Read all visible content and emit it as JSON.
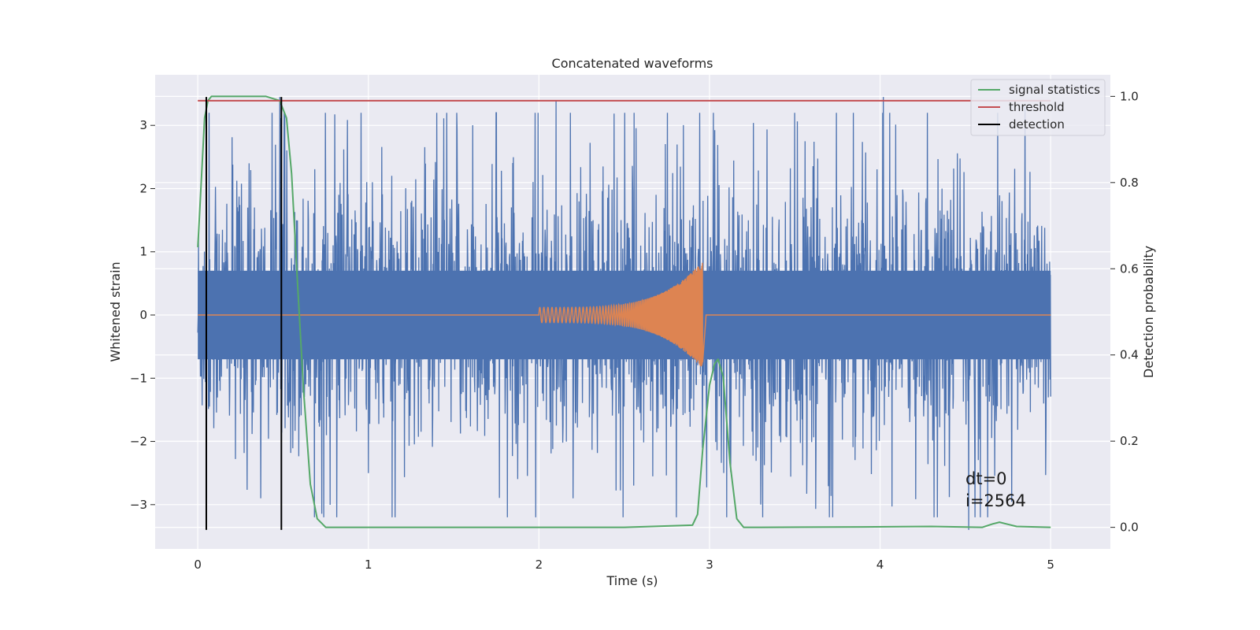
{
  "chart_data": {
    "type": "line",
    "title": "Concatenated waveforms",
    "xlabel": "Time (s)",
    "ylabel_left": "Whitened strain",
    "ylabel_right": "Detection probability",
    "xlim": [
      -0.25,
      5.35
    ],
    "ylim_left": [
      -3.7,
      3.8
    ],
    "ylim_right": [
      -0.05,
      1.05
    ],
    "xticks": [
      0,
      1,
      2,
      3,
      4,
      5
    ],
    "yticks_left": [
      -3,
      -2,
      -1,
      0,
      1,
      2,
      3
    ],
    "yticks_right": [
      0.0,
      0.2,
      0.4,
      0.6,
      0.8,
      1.0
    ],
    "grid": true,
    "legend_position": "top-right",
    "colors": {
      "background": "#eaeaf2",
      "grid": "#ffffff",
      "strain": "#4c72b0",
      "injection": "#dd8452",
      "signal_statistics": "#55a868",
      "threshold": "#c44e52",
      "detection": "#000000"
    },
    "series": [
      {
        "name": "signal statistics",
        "axis": "right",
        "color": "#55a868",
        "x": [
          0.0,
          0.02,
          0.04,
          0.06,
          0.08,
          0.1,
          0.2,
          0.3,
          0.4,
          0.48,
          0.52,
          0.55,
          0.58,
          0.62,
          0.66,
          0.7,
          0.75,
          0.8,
          1.5,
          2.5,
          2.9,
          2.93,
          2.96,
          3.0,
          3.03,
          3.05,
          3.08,
          3.12,
          3.16,
          3.2,
          3.3,
          3.9,
          4.3,
          4.6,
          4.66,
          4.7,
          4.74,
          4.8,
          5.0
        ],
        "y": [
          0.65,
          0.8,
          0.95,
          0.99,
          1.0,
          1.0,
          1.0,
          1.0,
          1.0,
          0.99,
          0.95,
          0.82,
          0.6,
          0.32,
          0.1,
          0.02,
          0.0,
          0.0,
          0.0,
          0.0,
          0.005,
          0.03,
          0.18,
          0.33,
          0.38,
          0.39,
          0.35,
          0.15,
          0.02,
          0.0,
          0.0,
          0.001,
          0.002,
          0.0,
          0.008,
          0.012,
          0.008,
          0.002,
          0.0
        ]
      },
      {
        "name": "threshold",
        "axis": "right",
        "color": "#c44e52",
        "x": [
          0.0,
          5.0
        ],
        "y": [
          0.99,
          0.99
        ]
      },
      {
        "name": "detection",
        "axis": "left",
        "color": "#000000",
        "vlines": [
          0.05,
          0.49
        ],
        "ymin": -3.4,
        "ymax": 3.45
      }
    ],
    "noise": {
      "axis": "left",
      "color": "#4c72b0",
      "x_range": [
        0.0,
        5.0
      ],
      "samples": 2560,
      "band": 0.7,
      "spike_peaks": [
        {
          "x": 0.05,
          "y": -2.9
        },
        {
          "x": 0.3,
          "y": 2.4
        },
        {
          "x": 0.37,
          "y": -2.9
        },
        {
          "x": 0.48,
          "y": 3.45
        },
        {
          "x": 1.0,
          "y": -2.5
        },
        {
          "x": 1.75,
          "y": 3.2
        },
        {
          "x": 2.1,
          "y": 3.4
        },
        {
          "x": 2.2,
          "y": -2.9
        },
        {
          "x": 3.3,
          "y": -3.0
        },
        {
          "x": 3.5,
          "y": 3.2
        },
        {
          "x": 4.02,
          "y": 3.45
        },
        {
          "x": 4.52,
          "y": -3.4
        },
        {
          "x": 4.85,
          "y": 3.3
        }
      ]
    },
    "injection": {
      "axis": "left",
      "color": "#dd8452",
      "x_start": 2.0,
      "x_end": 2.96,
      "amp_start": 0.12,
      "amp_end": 0.85,
      "amp_min_end": -0.75
    },
    "annotation": [
      "dt=0",
      "i=2564"
    ]
  }
}
